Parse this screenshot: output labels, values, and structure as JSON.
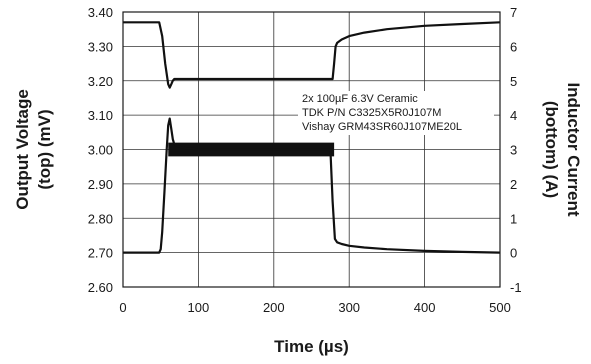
{
  "chart_data": {
    "type": "line",
    "title": "",
    "xlabel": "Time (µs)",
    "ylabel_left": [
      "Output Voltage",
      "(top) (mV)"
    ],
    "ylabel_right": [
      "Inductor Current",
      "(bottom) (A)"
    ],
    "xlim": [
      0,
      500
    ],
    "ylim_left": [
      2.6,
      3.4
    ],
    "ylim_right": [
      -1,
      7
    ],
    "x_ticks": [
      "0",
      "100",
      "200",
      "300",
      "400",
      "500"
    ],
    "y_ticks_left": [
      "2.60",
      "2.70",
      "2.80",
      "2.90",
      "3.00",
      "3.10",
      "3.20",
      "3.30",
      "3.40"
    ],
    "y_ticks_right": [
      "-1",
      "0",
      "1",
      "2",
      "3",
      "4",
      "5",
      "6",
      "7"
    ],
    "grid": true,
    "annotations": [
      "2x 100µF 6.3V Ceramic",
      "TDK P/N C3325X5R0J107M",
      "Vishay GRM43SR60J107ME20L"
    ],
    "series": [
      {
        "axis": "left",
        "x": [
          0,
          48,
          52,
          56,
          60,
          62,
          64,
          66,
          68,
          72,
          80,
          100,
          150,
          200,
          250,
          278,
          280,
          282,
          284,
          290,
          300,
          320,
          350,
          400,
          450,
          500
        ],
        "y": [
          3.37,
          3.37,
          3.33,
          3.25,
          3.19,
          3.18,
          3.19,
          3.2,
          3.205,
          3.205,
          3.205,
          3.205,
          3.205,
          3.205,
          3.205,
          3.205,
          3.25,
          3.3,
          3.31,
          3.32,
          3.33,
          3.34,
          3.35,
          3.36,
          3.365,
          3.37
        ]
      },
      {
        "axis": "right",
        "x": [
          0,
          48,
          50,
          52,
          55,
          58,
          60,
          62,
          64,
          66,
          68,
          72,
          80,
          100,
          150,
          200,
          250,
          275,
          278,
          281,
          284,
          290,
          300,
          320,
          350,
          400,
          450,
          500
        ],
        "y": [
          0.0,
          0.0,
          0.1,
          0.6,
          1.8,
          3.0,
          3.7,
          3.9,
          3.6,
          3.3,
          3.15,
          3.1,
          3.05,
          3.0,
          3.0,
          3.0,
          3.0,
          3.0,
          1.5,
          0.4,
          0.3,
          0.25,
          0.2,
          0.15,
          0.1,
          0.05,
          0.02,
          0.0
        ]
      }
    ],
    "noise_band": {
      "axis": "right",
      "x": [
        60,
        280
      ],
      "center": 3.0,
      "amplitude": 0.2
    }
  }
}
